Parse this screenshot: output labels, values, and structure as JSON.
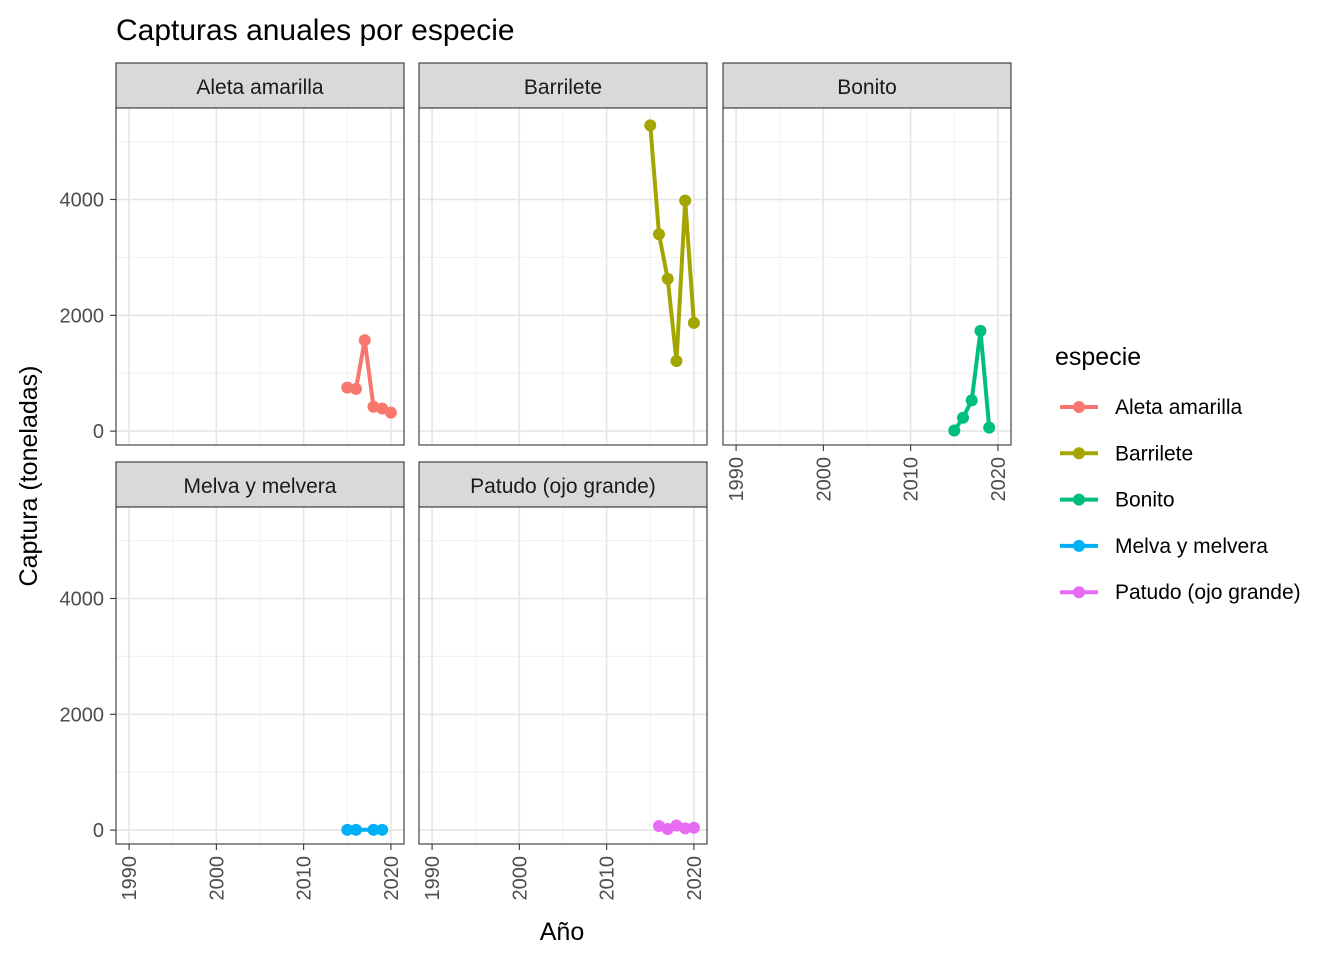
{
  "chart_data": {
    "type": "line",
    "title": "Capturas anuales por especie",
    "xlabel": "Año",
    "ylabel": "Captura (toneladas)",
    "xlim": [
      1988.5,
      2021.5
    ],
    "ylim": [
      -240,
      5580
    ],
    "x_ticks": [
      1990,
      2000,
      2010,
      2020
    ],
    "y_ticks": [
      0,
      2000,
      4000
    ],
    "facet_layout": "wrap 3 columns",
    "legend": {
      "title": "especie",
      "position": "right"
    },
    "panels": [
      {
        "strip": "Aleta amarilla",
        "color": "#F8766D",
        "x": [
          2015,
          2016,
          2017,
          2018,
          2019,
          2020
        ],
        "y": [
          750,
          730,
          1570,
          420,
          390,
          320
        ]
      },
      {
        "strip": "Barrilete",
        "color": "#A3A500",
        "x": [
          2015,
          2016,
          2017,
          2018,
          2019,
          2020
        ],
        "y": [
          5280,
          3400,
          2630,
          1210,
          3980,
          1870
        ]
      },
      {
        "strip": "Bonito",
        "color": "#00BF7D",
        "x": [
          2015,
          2016,
          2017,
          2018,
          2019
        ],
        "y": [
          10,
          230,
          530,
          1730,
          60
        ]
      },
      {
        "strip": "Melva y melvera",
        "color": "#00B0F6",
        "x": [
          2015,
          2016,
          2018,
          2019
        ],
        "y": [
          5,
          5,
          5,
          5
        ]
      },
      {
        "strip": "Patudo (ojo grande)",
        "color": "#E76BF3",
        "x": [
          2016,
          2017,
          2018,
          2019,
          2020
        ],
        "y": [
          70,
          20,
          80,
          30,
          40
        ]
      }
    ]
  }
}
